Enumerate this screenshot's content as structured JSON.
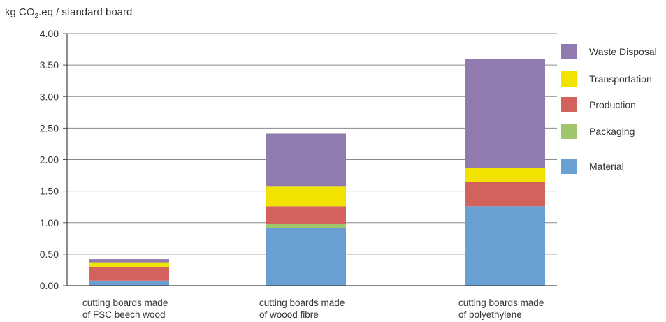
{
  "chart_data": {
    "type": "bar",
    "stacked": true,
    "ylabel_prefix": "kg CO",
    "ylabel_sub": "2",
    "ylabel_suffix": ".eq / standard  board",
    "ylim": [
      0,
      4
    ],
    "yticks": [
      "0.00",
      "0.50",
      "1.00",
      "1.50",
      "2.00",
      "2.50",
      "3.00",
      "3.50",
      "4.00"
    ],
    "grid": true,
    "legend_position": "right",
    "categories": [
      [
        "cutting boards made",
        "of FSC beech wood"
      ],
      [
        "cutting boards made",
        "of woood fibre"
      ],
      [
        "cutting boards made",
        "of polyethylene"
      ]
    ],
    "series": [
      {
        "name": "Material",
        "color": "#6a9fd4",
        "values": [
          0.07,
          0.92,
          1.26
        ]
      },
      {
        "name": "Packaging",
        "color": "#9fc66a",
        "values": [
          0.01,
          0.06,
          0.0
        ]
      },
      {
        "name": "Production",
        "color": "#d4625c",
        "values": [
          0.22,
          0.28,
          0.39
        ]
      },
      {
        "name": "Transportation",
        "color": "#f2e200",
        "values": [
          0.07,
          0.31,
          0.22
        ]
      },
      {
        "name": "Waste Disposal",
        "color": "#917aaf",
        "values": [
          0.05,
          0.84,
          1.72
        ]
      }
    ],
    "legend_order": [
      "Waste Disposal",
      "Transportation",
      "Production",
      "Packaging",
      "Material"
    ]
  }
}
